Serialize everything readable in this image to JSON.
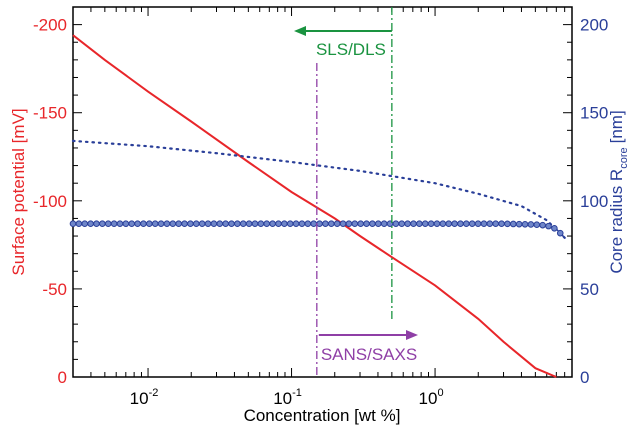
{
  "chart_data": {
    "type": "line",
    "xlabel": "Concentration [wt %]",
    "ylabel_left": "Surface potential [mV]",
    "ylabel_right": "Core radius R",
    "ylabel_right_subscript": "core",
    "ylabel_right_unit": "[nm]",
    "x_scale": "log",
    "xlim": [
      0.003,
      9
    ],
    "ylim_left": [
      0,
      -210
    ],
    "ylim_right": [
      0,
      210
    ],
    "x_tick_labels": [
      {
        "value": 0.01,
        "base": "10",
        "exp": "-2"
      },
      {
        "value": 0.1,
        "base": "10",
        "exp": "-1"
      },
      {
        "value": 1,
        "base": "10",
        "exp": "0"
      }
    ],
    "y_left_ticks": [
      {
        "value": 0,
        "label": "0"
      },
      {
        "value": -50,
        "label": "-50"
      },
      {
        "value": -100,
        "label": "-100"
      },
      {
        "value": -150,
        "label": "-150"
      },
      {
        "value": -200,
        "label": "-200"
      }
    ],
    "y_right_ticks": [
      {
        "value": 0,
        "label": "0"
      },
      {
        "value": 50,
        "label": "50"
      },
      {
        "value": 100,
        "label": "100"
      },
      {
        "value": 150,
        "label": "150"
      },
      {
        "value": 200,
        "label": "200"
      }
    ],
    "colors": {
      "left_axis": "#e8262a",
      "right_axis": "#2a3f99",
      "sls_dls": "#1a9340",
      "sans_saxs": "#8f3fa6"
    },
    "series": [
      {
        "axis": "left",
        "style": "solid",
        "x": [
          0.003,
          0.005,
          0.01,
          0.02,
          0.05,
          0.1,
          0.2,
          0.3,
          0.5,
          1,
          2,
          3,
          5,
          7
        ],
        "y": [
          -194,
          -180,
          -162,
          -145,
          -122,
          -105,
          -90,
          -80,
          -68,
          -52,
          -33,
          -20,
          -5,
          0
        ]
      },
      {
        "axis": "right",
        "style": "dotted",
        "x": [
          0.003,
          0.01,
          0.03,
          0.1,
          0.3,
          1,
          2,
          4,
          6,
          8
        ],
        "y": [
          134,
          131,
          127,
          122,
          117,
          110,
          104,
          97,
          89,
          79
        ]
      },
      {
        "axis": "right",
        "style": "circles",
        "x": [
          0.003,
          0.01,
          0.1,
          1,
          3,
          5,
          6,
          7,
          8
        ],
        "y": [
          87,
          87,
          87,
          87,
          87,
          86.5,
          86,
          84,
          79
        ]
      }
    ],
    "annotations": [
      {
        "name": "sls-dls",
        "text": "SLS/DLS",
        "x": 0.5,
        "arrow": "left"
      },
      {
        "name": "sans-saxs",
        "text": "SANS/SAXS",
        "x": 0.15,
        "arrow": "right"
      }
    ]
  }
}
